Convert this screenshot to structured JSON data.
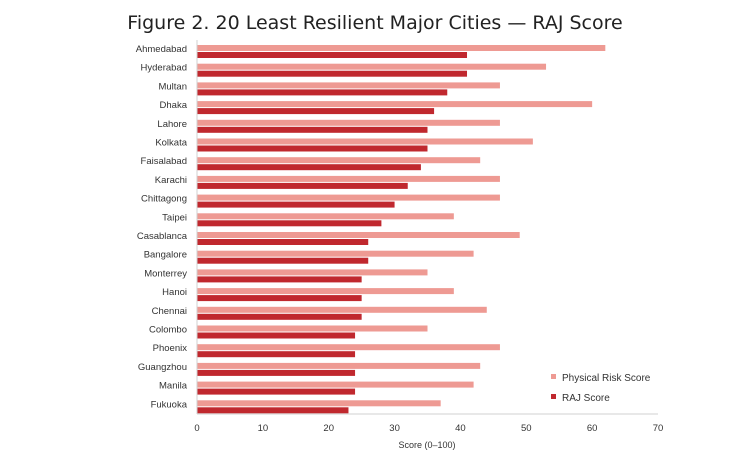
{
  "chart_data": {
    "type": "bar",
    "orientation": "horizontal",
    "title": "Figure 2. 20 Least Resilient Major Cities — RAJ Score",
    "xlabel": "Score (0–100)",
    "ylabel": "",
    "xlim": [
      0,
      70
    ],
    "xticks": [
      0,
      10,
      20,
      30,
      40,
      50,
      60,
      70
    ],
    "grid": false,
    "legend_position": "bottom-right",
    "categories": [
      "Ahmedabad",
      "Hyderabad",
      "Multan",
      "Dhaka",
      "Lahore",
      "Kolkata",
      "Faisalabad",
      "Karachi",
      "Chittagong",
      "Taipei",
      "Casablanca",
      "Bangalore",
      "Monterrey",
      "Hanoi",
      "Chennai",
      "Colombo",
      "Phoenix",
      "Guangzhou",
      "Manila",
      "Fukuoka"
    ],
    "series": [
      {
        "name": "Physical Risk Score",
        "color": "#ee9a93",
        "values": [
          62,
          53,
          46,
          60,
          46,
          51,
          43,
          46,
          46,
          39,
          49,
          42,
          35,
          39,
          44,
          35,
          46,
          43,
          42,
          37
        ]
      },
      {
        "name": "RAJ Score",
        "color": "#c0282e",
        "values": [
          41,
          41,
          38,
          36,
          35,
          35,
          34,
          32,
          30,
          28,
          26,
          26,
          25,
          25,
          25,
          24,
          24,
          24,
          24,
          23
        ]
      }
    ]
  }
}
